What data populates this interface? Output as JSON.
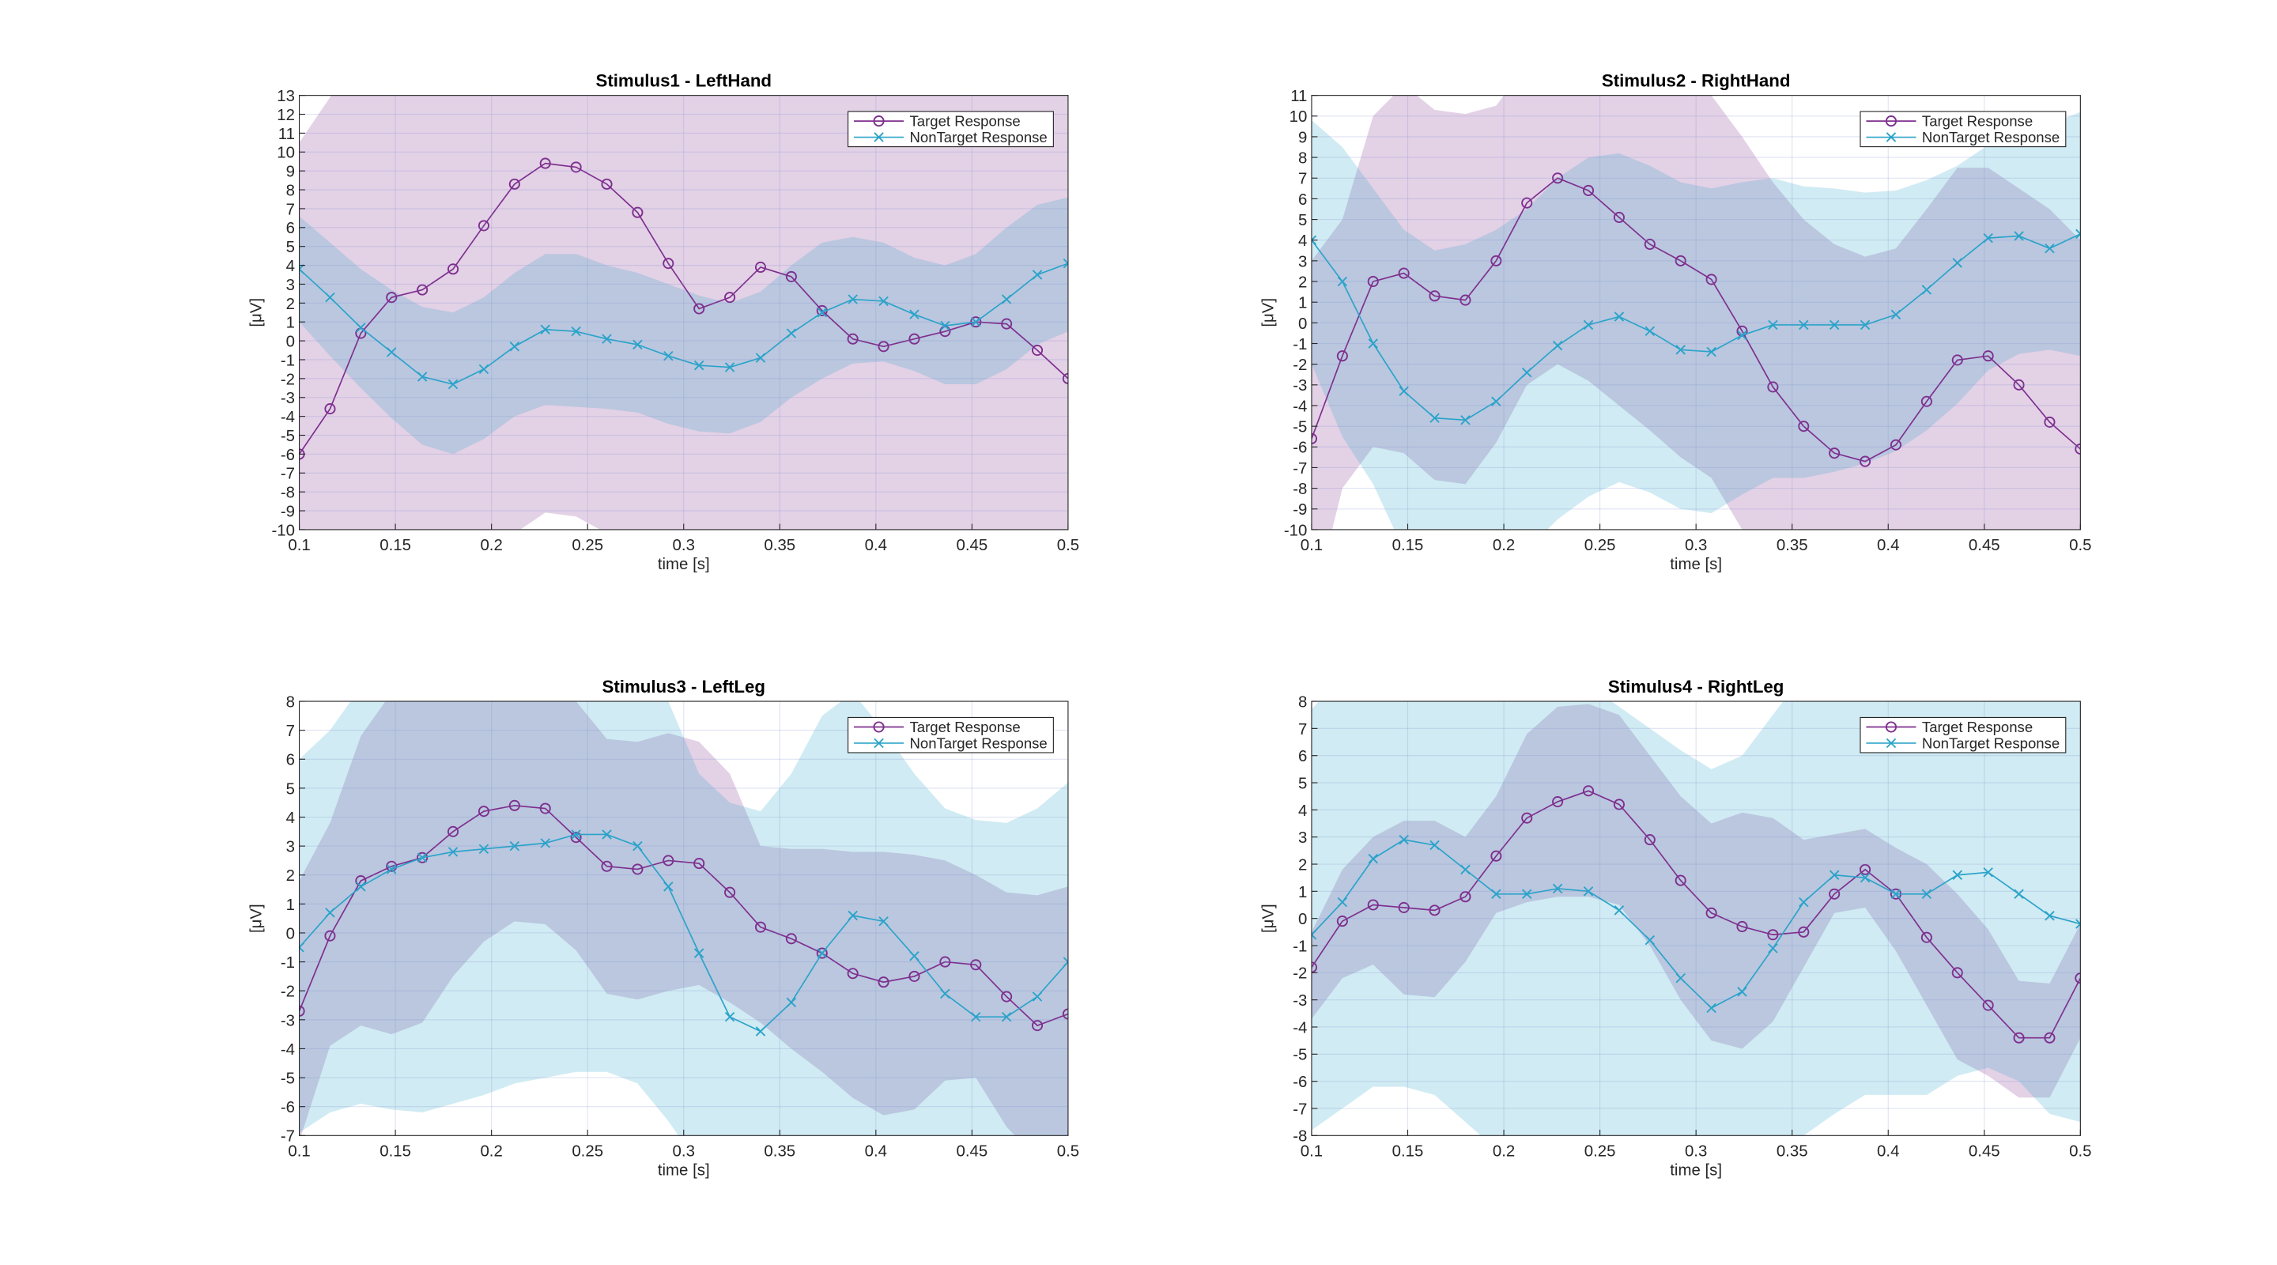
{
  "chart_data": [
    {
      "type": "line",
      "title": "Stimulus1 - LeftHand",
      "xlabel": "time [s]",
      "ylabel": "[μV]",
      "grid": true,
      "legend": "upper right",
      "x": [
        0.1,
        0.116,
        0.132,
        0.148,
        0.164,
        0.18,
        0.196,
        0.212,
        0.228,
        0.244,
        0.26,
        0.276,
        0.292,
        0.308,
        0.324,
        0.34,
        0.356,
        0.372,
        0.388,
        0.404,
        0.42,
        0.436,
        0.452,
        0.468,
        0.484,
        0.5
      ],
      "xlim": [
        0.1,
        0.5
      ],
      "xticks": [
        0.1,
        0.15,
        0.2,
        0.25,
        0.3,
        0.35,
        0.4,
        0.45,
        0.5
      ],
      "ylim": [
        -10,
        13
      ],
      "yticks": [
        -10,
        -9,
        -8,
        -7,
        -6,
        -5,
        -4,
        -3,
        -2,
        -1,
        0,
        1,
        2,
        3,
        4,
        5,
        6,
        7,
        8,
        9,
        10,
        11,
        12,
        13
      ],
      "series": [
        {
          "name": "Target Response",
          "color": "#7e2f8e",
          "marker": "o",
          "values": [
            -6,
            -3.6,
            0.4,
            2.3,
            2.7,
            3.8,
            6.1,
            8.3,
            9.4,
            9.2,
            8.3,
            6.8,
            4.1,
            1.7,
            2.3,
            3.9,
            3.4,
            1.6,
            0.1,
            -0.3,
            0.1,
            0.5,
            1.0,
            0.9,
            -0.5,
            -2.0
          ],
          "upper": [
            10.5,
            12.9,
            16.9,
            18.8,
            19.2,
            20.3,
            22.6,
            24.8,
            25.9,
            25.7,
            24.8,
            23.3,
            20.6,
            18.2,
            18.8,
            20.4,
            19.9,
            18.1,
            16.6,
            16.2,
            16.6,
            17.0,
            17.5,
            17.4,
            16.0,
            14.5
          ],
          "lower": [
            -24.5,
            -22.1,
            -18.1,
            -16.2,
            -15.8,
            -14.7,
            -12.4,
            -10.2,
            -9.1,
            -9.3,
            -10.2,
            -11.7,
            -14.4,
            -16.8,
            -16.2,
            -14.6,
            -15.1,
            -16.9,
            -18.4,
            -18.8,
            -18.4,
            -18.0,
            -17.5,
            -17.6,
            -19.0,
            -20.5
          ]
        },
        {
          "name": "NonTarget Response",
          "color": "#2aa3c9",
          "marker": "x",
          "values": [
            3.8,
            2.3,
            0.7,
            -0.6,
            -1.9,
            -2.3,
            -1.5,
            -0.3,
            0.6,
            0.5,
            0.1,
            -0.2,
            -0.8,
            -1.3,
            -1.4,
            -0.9,
            0.4,
            1.5,
            2.2,
            2.1,
            1.4,
            0.8,
            1.0,
            2.2,
            3.5,
            4.1
          ],
          "upper": [
            6.6,
            5.2,
            3.8,
            2.7,
            1.8,
            1.5,
            2.3,
            3.6,
            4.6,
            4.6,
            4.0,
            3.6,
            3.0,
            2.4,
            2.0,
            2.6,
            4.0,
            5.2,
            5.5,
            5.2,
            4.4,
            4.0,
            4.6,
            6.0,
            7.2,
            7.6
          ],
          "lower": [
            1.0,
            -0.8,
            -2.5,
            -4.1,
            -5.5,
            -6.0,
            -5.2,
            -4.0,
            -3.4,
            -3.5,
            -3.6,
            -3.8,
            -4.4,
            -4.8,
            -4.9,
            -4.3,
            -3.0,
            -2.0,
            -1.2,
            -1.1,
            -1.6,
            -2.3,
            -2.3,
            -1.5,
            -0.2,
            0.5
          ]
        }
      ]
    },
    {
      "type": "line",
      "title": "Stimulus2 - RightHand",
      "xlabel": "time [s]",
      "ylabel": "[μV]",
      "grid": true,
      "legend": "upper right",
      "x": [
        0.1,
        0.116,
        0.132,
        0.148,
        0.164,
        0.18,
        0.196,
        0.212,
        0.228,
        0.244,
        0.26,
        0.276,
        0.292,
        0.308,
        0.324,
        0.34,
        0.356,
        0.372,
        0.388,
        0.404,
        0.42,
        0.436,
        0.452,
        0.468,
        0.484,
        0.5
      ],
      "xlim": [
        0.1,
        0.5
      ],
      "xticks": [
        0.1,
        0.15,
        0.2,
        0.25,
        0.3,
        0.35,
        0.4,
        0.45,
        0.5
      ],
      "ylim": [
        -10,
        11
      ],
      "yticks": [
        -10,
        -9,
        -8,
        -7,
        -6,
        -5,
        -4,
        -3,
        -2,
        -1,
        0,
        1,
        2,
        3,
        4,
        5,
        6,
        7,
        8,
        9,
        10,
        11
      ],
      "series": [
        {
          "name": "Target Response",
          "color": "#7e2f8e",
          "marker": "o",
          "values": [
            -5.6,
            -1.6,
            2.0,
            2.4,
            1.3,
            1.1,
            3.0,
            5.8,
            7.0,
            6.4,
            5.1,
            3.8,
            3.0,
            2.1,
            -0.4,
            -3.1,
            -5.0,
            -6.3,
            -6.7,
            -5.9,
            -3.8,
            -1.8,
            -1.6,
            -3.0,
            -4.8,
            -6.1
          ],
          "upper": [
            3.0,
            5.0,
            10,
            11.5,
            10.3,
            10.1,
            10.5,
            12.5,
            13.5,
            13,
            12.5,
            12,
            11.5,
            11,
            9,
            6.8,
            5.0,
            3.8,
            3.2,
            3.6,
            5.5,
            7.5,
            7.5,
            6.5,
            5.5,
            4.0
          ],
          "lower": [
            -14,
            -8,
            -6,
            -6.3,
            -7.6,
            -7.8,
            -5.8,
            -3,
            -2,
            -2.8,
            -4,
            -5.2,
            -6.5,
            -7.5,
            -10,
            -13,
            -15,
            -16,
            -16.5,
            -15.5,
            -13,
            -11,
            -10.5,
            -12,
            -14,
            -16
          ]
        },
        {
          "name": "NonTarget Response",
          "color": "#2aa3c9",
          "marker": "x",
          "values": [
            4.0,
            2.0,
            -1.0,
            -3.3,
            -4.6,
            -4.7,
            -3.8,
            -2.4,
            -1.1,
            -0.1,
            0.3,
            -0.4,
            -1.3,
            -1.4,
            -0.6,
            -0.1,
            -0.1,
            -0.1,
            -0.1,
            0.4,
            1.6,
            2.9,
            4.1,
            4.2,
            3.6,
            4.3
          ],
          "upper": [
            9.8,
            8.5,
            6.5,
            4.5,
            3.5,
            3.8,
            4.5,
            5.5,
            7.0,
            8.0,
            8.2,
            7.6,
            6.8,
            6.5,
            6.8,
            7.0,
            6.6,
            6.5,
            6.3,
            6.4,
            6.9,
            7.6,
            8.6,
            9.2,
            9.6,
            10.2
          ],
          "lower": [
            -2,
            -5.5,
            -7.8,
            -11,
            -12,
            -12.5,
            -12,
            -11,
            -9.5,
            -8.4,
            -7.7,
            -8.2,
            -9,
            -9.2,
            -8.3,
            -7.5,
            -7.5,
            -7.2,
            -6.8,
            -6.2,
            -5.2,
            -3.9,
            -2.3,
            -1.5,
            -1.3,
            -1.6
          ]
        }
      ]
    },
    {
      "type": "line",
      "title": "Stimulus3 - LeftLeg",
      "xlabel": "time [s]",
      "ylabel": "[μV]",
      "grid": true,
      "legend": "upper right",
      "x": [
        0.1,
        0.116,
        0.132,
        0.148,
        0.164,
        0.18,
        0.196,
        0.212,
        0.228,
        0.244,
        0.26,
        0.276,
        0.292,
        0.308,
        0.324,
        0.34,
        0.356,
        0.372,
        0.388,
        0.404,
        0.42,
        0.436,
        0.452,
        0.468,
        0.484,
        0.5
      ],
      "xlim": [
        0.1,
        0.5
      ],
      "xticks": [
        0.1,
        0.15,
        0.2,
        0.25,
        0.3,
        0.35,
        0.4,
        0.45,
        0.5
      ],
      "ylim": [
        -7,
        8
      ],
      "yticks": [
        -7,
        -6,
        -5,
        -4,
        -3,
        -2,
        -1,
        0,
        1,
        2,
        3,
        4,
        5,
        6,
        7,
        8
      ],
      "series": [
        {
          "name": "Target Response",
          "color": "#7e2f8e",
          "marker": "o",
          "values": [
            -2.7,
            -0.1,
            1.8,
            2.3,
            2.6,
            3.5,
            4.2,
            4.4,
            4.3,
            3.3,
            2.3,
            2.2,
            2.5,
            2.4,
            1.4,
            0.2,
            -0.2,
            -0.7,
            -1.4,
            -1.7,
            -1.5,
            -1.0,
            -1.1,
            -2.2,
            -3.2,
            -2.8
          ],
          "upper": [
            1.8,
            3.8,
            6.8,
            8.3,
            9,
            10,
            10,
            10.5,
            9,
            8,
            6.7,
            6.6,
            6.9,
            6.6,
            5.5,
            3.0,
            2.9,
            2.9,
            2.8,
            2.8,
            2.7,
            2.5,
            2.0,
            1.4,
            1.3,
            1.6
          ],
          "lower": [
            -7.2,
            -3.9,
            -3.2,
            -3.5,
            -3.1,
            -1.5,
            -0.3,
            0.4,
            0.3,
            -0.6,
            -2.1,
            -2.3,
            -2.0,
            -1.8,
            -2.4,
            -3.1,
            -4.0,
            -4.8,
            -5.7,
            -6.3,
            -6.1,
            -5.1,
            -5.0,
            -6.7,
            -7.8,
            -7.5
          ]
        },
        {
          "name": "NonTarget Response",
          "color": "#2aa3c9",
          "marker": "x",
          "values": [
            -0.5,
            0.7,
            1.6,
            2.2,
            2.6,
            2.8,
            2.9,
            3.0,
            3.1,
            3.4,
            3.4,
            3.0,
            1.6,
            -0.7,
            -2.9,
            -3.4,
            -2.4,
            -0.7,
            0.6,
            0.4,
            -0.8,
            -2.1,
            -2.9,
            -2.9,
            -2.2,
            -1.0
          ],
          "upper": [
            6,
            7,
            8.5,
            9.5,
            10,
            10,
            10,
            10,
            9.5,
            9,
            8.8,
            8.5,
            8,
            5.5,
            4.5,
            4.2,
            5.5,
            7.5,
            8.3,
            7.0,
            5.5,
            4.3,
            3.9,
            3.8,
            4.3,
            5.2
          ],
          "lower": [
            -6.9,
            -6.2,
            -5.9,
            -6.1,
            -6.2,
            -5.9,
            -5.6,
            -5.2,
            -5.0,
            -4.8,
            -4.8,
            -5.2,
            -6.5,
            -8,
            -10,
            -11,
            -10,
            -8.5,
            -7.5,
            -7.5,
            -8.5,
            -9.5,
            -10,
            -10,
            -9,
            -7.5
          ]
        }
      ]
    },
    {
      "type": "line",
      "title": "Stimulus4 - RightLeg",
      "xlabel": "time [s]",
      "ylabel": "[μV]",
      "grid": true,
      "legend": "upper right",
      "x": [
        0.1,
        0.116,
        0.132,
        0.148,
        0.164,
        0.18,
        0.196,
        0.212,
        0.228,
        0.244,
        0.26,
        0.276,
        0.292,
        0.308,
        0.324,
        0.34,
        0.356,
        0.372,
        0.388,
        0.404,
        0.42,
        0.436,
        0.452,
        0.468,
        0.484,
        0.5
      ],
      "xlim": [
        0.1,
        0.5
      ],
      "xticks": [
        0.1,
        0.15,
        0.2,
        0.25,
        0.3,
        0.35,
        0.4,
        0.45,
        0.5
      ],
      "ylim": [
        -8,
        8
      ],
      "yticks": [
        -8,
        -7,
        -6,
        -5,
        -4,
        -3,
        -2,
        -1,
        0,
        1,
        2,
        3,
        4,
        5,
        6,
        7,
        8
      ],
      "series": [
        {
          "name": "Target Response",
          "color": "#7e2f8e",
          "marker": "o",
          "values": [
            -1.8,
            -0.1,
            0.5,
            0.4,
            0.3,
            0.8,
            2.3,
            3.7,
            4.3,
            4.7,
            4.2,
            2.9,
            1.4,
            0.2,
            -0.3,
            -0.6,
            -0.5,
            0.9,
            1.8,
            0.9,
            -0.7,
            -2.0,
            -3.2,
            -4.4,
            -4.4,
            -2.2
          ],
          "upper": [
            -0.5,
            1.8,
            3,
            3.6,
            3.6,
            3.0,
            4.5,
            6.8,
            7.8,
            7.9,
            7.5,
            6,
            4.5,
            3.5,
            3.9,
            3.7,
            2.9,
            3.1,
            3.3,
            2.6,
            2.0,
            0.9,
            -0.4,
            -2.3,
            -2.4,
            -0.2
          ],
          "lower": [
            -3.7,
            -2.2,
            -1.7,
            -2.8,
            -2.9,
            -1.6,
            0.2,
            0.6,
            0.8,
            0.8,
            0.5,
            -1.0,
            -3.0,
            -4.5,
            -4.8,
            -3.8,
            -1.8,
            0.2,
            0.4,
            -1.2,
            -3.2,
            -5.2,
            -5.8,
            -6.6,
            -6.6,
            -4.4
          ]
        },
        {
          "name": "NonTarget Response",
          "color": "#2aa3c9",
          "marker": "x",
          "values": [
            -0.6,
            0.6,
            2.2,
            2.9,
            2.7,
            1.8,
            0.9,
            0.9,
            1.1,
            1.0,
            0.3,
            -0.8,
            -2.2,
            -3.3,
            -2.7,
            -1.1,
            0.6,
            1.6,
            1.5,
            0.9,
            0.9,
            1.6,
            1.7,
            0.9,
            0.1,
            -0.2
          ],
          "upper": [
            7.7,
            9,
            10,
            10.5,
            10,
            9,
            8.5,
            8.5,
            8.5,
            8.6,
            7.8,
            7.0,
            6.2,
            5.5,
            6.0,
            7.5,
            9,
            10,
            10,
            9.5,
            9.5,
            10,
            10,
            9.5,
            9,
            8.5
          ],
          "lower": [
            -7.8,
            -7,
            -6.2,
            -6.2,
            -6.5,
            -7.5,
            -8.5,
            -9,
            -9.5,
            -9.5,
            -10,
            -10,
            -10,
            -10,
            -10,
            -9.5,
            -8,
            -7.2,
            -6.5,
            -6.5,
            -6.5,
            -5.8,
            -5.5,
            -6.0,
            -7.2,
            -7.5
          ]
        }
      ]
    }
  ]
}
